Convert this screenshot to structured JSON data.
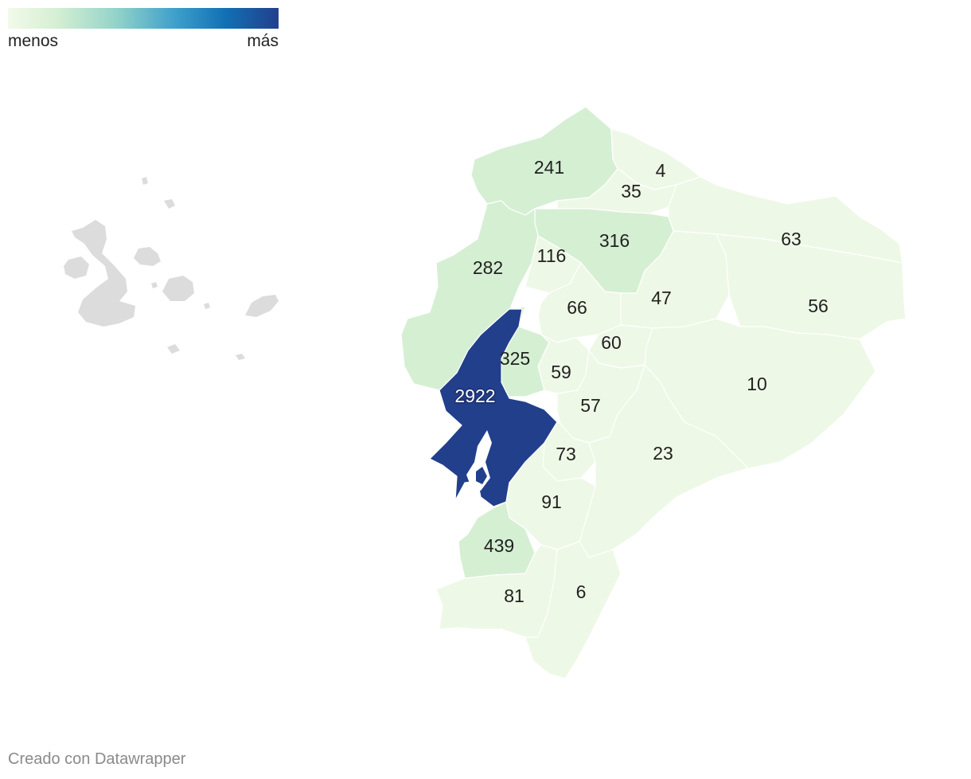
{
  "legend": {
    "low_label": "menos",
    "high_label": "más"
  },
  "credit": "Creado con Datawrapper",
  "colors": {
    "scale_min": "#f2fae9",
    "scale_mid": "#d5efd3",
    "scale_max": "#223f8c",
    "islands": "#dcdcdc",
    "border": "#ffffff"
  },
  "provinces": [
    {
      "id": "esmeraldas",
      "value": "241"
    },
    {
      "id": "carchi",
      "value": "4"
    },
    {
      "id": "imbabura",
      "value": "35"
    },
    {
      "id": "pichincha",
      "value": "316"
    },
    {
      "id": "sucumbios",
      "value": "63"
    },
    {
      "id": "manabi",
      "value": "282"
    },
    {
      "id": "santo-domingo",
      "value": "116"
    },
    {
      "id": "cotopaxi",
      "value": "66"
    },
    {
      "id": "napo",
      "value": "47"
    },
    {
      "id": "orellana",
      "value": "56"
    },
    {
      "id": "tungurahua",
      "value": "60"
    },
    {
      "id": "los-rios",
      "value": "325"
    },
    {
      "id": "bolivar",
      "value": "59"
    },
    {
      "id": "pastaza",
      "value": "10"
    },
    {
      "id": "guayas",
      "value": "2922"
    },
    {
      "id": "chimborazo",
      "value": "57"
    },
    {
      "id": "canar",
      "value": "73"
    },
    {
      "id": "morona-santiago",
      "value": "23"
    },
    {
      "id": "azuay",
      "value": "91"
    },
    {
      "id": "el-oro",
      "value": "439"
    },
    {
      "id": "loja",
      "value": "81"
    },
    {
      "id": "zamora-chinchipe",
      "value": "6"
    }
  ]
}
